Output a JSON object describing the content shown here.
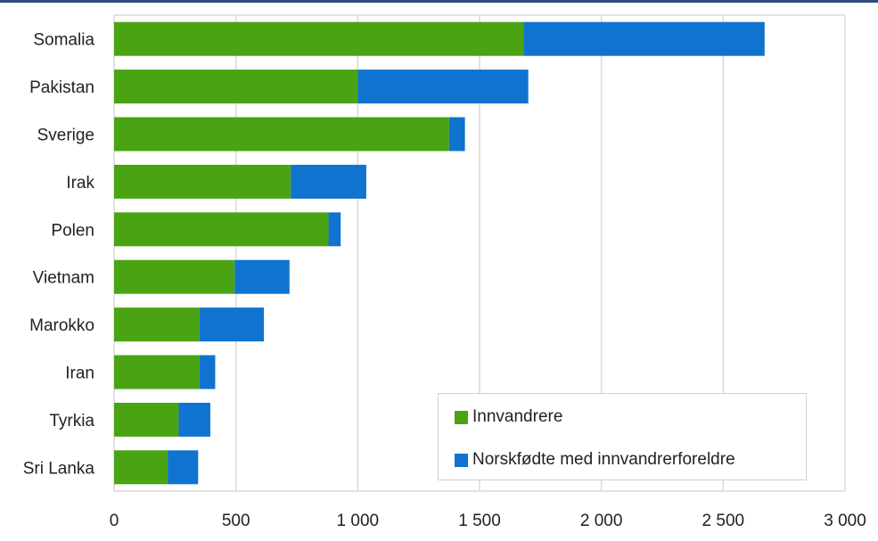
{
  "chart_data": {
    "type": "bar",
    "orientation": "horizontal",
    "stacked": true,
    "categories": [
      "Somalia",
      "Pakistan",
      "Sverige",
      "Irak",
      "Polen",
      "Vietnam",
      "Marokko",
      "Iran",
      "Tyrkia",
      "Sri Lanka"
    ],
    "series": [
      {
        "name": "Innvandrere",
        "color": "#4aa313",
        "values": [
          1680,
          1000,
          1375,
          725,
          880,
          495,
          350,
          350,
          265,
          220
        ]
      },
      {
        "name": "Norskfødte med innvandrerforeldre",
        "color": "#0f73cf",
        "values": [
          990,
          700,
          65,
          310,
          50,
          225,
          265,
          65,
          130,
          125
        ]
      }
    ],
    "xlim": [
      0,
      3000
    ],
    "x_ticks": [
      0,
      500,
      1000,
      1500,
      2000,
      2500,
      3000
    ],
    "x_tick_labels": [
      "0",
      "500",
      "1 000",
      "1 500",
      "2 000",
      "2 500",
      "3 000"
    ],
    "grid": true,
    "legend_position": "bottom-right"
  }
}
